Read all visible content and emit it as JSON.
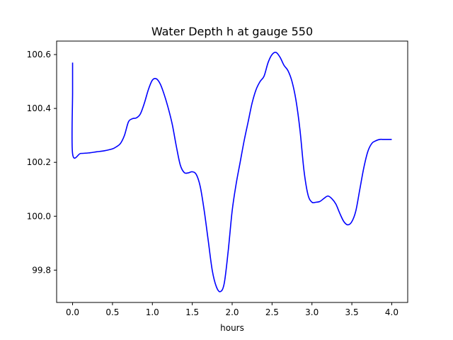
{
  "chart_data": {
    "type": "line",
    "title": "Water Depth h at gauge 550",
    "xlabel": "hours",
    "ylabel": "",
    "xlim": [
      -0.2,
      4.2
    ],
    "ylim": [
      99.68,
      100.65
    ],
    "xticks": [
      0.0,
      0.5,
      1.0,
      1.5,
      2.0,
      2.5,
      3.0,
      3.5,
      4.0
    ],
    "xtick_labels": [
      "0.0",
      "0.5",
      "1.0",
      "1.5",
      "2.0",
      "2.5",
      "3.0",
      "3.5",
      "4.0"
    ],
    "yticks": [
      99.8,
      100.0,
      100.2,
      100.4,
      100.6
    ],
    "ytick_labels": [
      "99.8",
      "100.0",
      "100.2",
      "100.4",
      "100.6"
    ],
    "grid": false,
    "series": [
      {
        "color": "#0000ff",
        "x": [
          0.0,
          0.0,
          0.0,
          0.1,
          0.2,
          0.3,
          0.4,
          0.5,
          0.55,
          0.6,
          0.65,
          0.7,
          0.75,
          0.8,
          0.85,
          0.9,
          0.95,
          1.0,
          1.05,
          1.1,
          1.15,
          1.2,
          1.25,
          1.3,
          1.35,
          1.4,
          1.45,
          1.5,
          1.55,
          1.6,
          1.65,
          1.7,
          1.75,
          1.8,
          1.85,
          1.9,
          1.95,
          2.0,
          2.05,
          2.1,
          2.15,
          2.2,
          2.25,
          2.3,
          2.35,
          2.4,
          2.45,
          2.5,
          2.55,
          2.6,
          2.65,
          2.7,
          2.75,
          2.8,
          2.85,
          2.9,
          2.95,
          3.0,
          3.05,
          3.1,
          3.15,
          3.2,
          3.25,
          3.3,
          3.35,
          3.4,
          3.45,
          3.5,
          3.55,
          3.6,
          3.65,
          3.7,
          3.75,
          3.8,
          3.85,
          3.9,
          3.95,
          4.0
        ],
        "y": [
          100.57,
          100.46,
          100.232,
          100.233,
          100.235,
          100.239,
          100.243,
          100.25,
          100.258,
          100.27,
          100.3,
          100.35,
          100.362,
          100.365,
          100.38,
          100.42,
          100.47,
          100.505,
          100.51,
          100.49,
          100.45,
          100.4,
          100.34,
          100.26,
          100.19,
          100.162,
          100.161,
          100.165,
          100.155,
          100.11,
          100.02,
          99.91,
          99.8,
          99.74,
          99.72,
          99.75,
          99.87,
          100.02,
          100.12,
          100.2,
          100.28,
          100.35,
          100.42,
          100.47,
          100.5,
          100.52,
          100.57,
          100.6,
          100.608,
          100.59,
          100.56,
          100.54,
          100.5,
          100.43,
          100.32,
          100.17,
          100.08,
          100.052,
          100.052,
          100.055,
          100.066,
          100.075,
          100.065,
          100.045,
          100.01,
          99.98,
          99.968,
          99.98,
          100.02,
          100.1,
          100.18,
          100.24,
          100.27,
          100.28,
          100.285,
          100.285,
          100.285,
          100.285
        ]
      }
    ]
  }
}
